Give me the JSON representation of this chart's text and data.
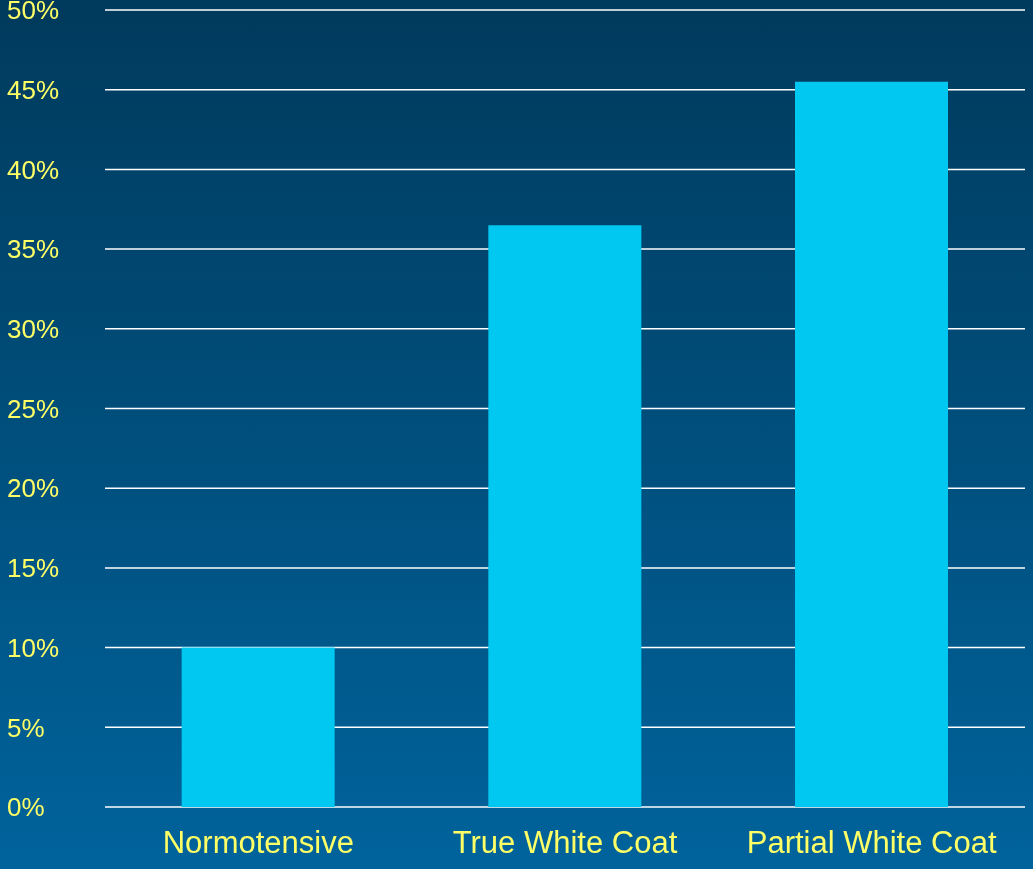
{
  "chart_data": {
    "type": "bar",
    "categories": [
      "Normotensive",
      "True White Coat",
      "Partial White Coat"
    ],
    "values": [
      10,
      36.5,
      45.5
    ],
    "color": "#00c8f0",
    "ylim": [
      0,
      50
    ],
    "yticks": [
      {
        "value": 0,
        "label": "0%"
      },
      {
        "value": 5,
        "label": "5%"
      },
      {
        "value": 10,
        "label": "10%"
      },
      {
        "value": 15,
        "label": "15%"
      },
      {
        "value": 20,
        "label": "20%"
      },
      {
        "value": 25,
        "label": "25%"
      },
      {
        "value": 30,
        "label": "30%"
      },
      {
        "value": 35,
        "label": "35%"
      },
      {
        "value": 40,
        "label": "40%"
      },
      {
        "value": 45,
        "label": "45%"
      },
      {
        "value": 50,
        "label": "50%"
      }
    ],
    "grid": "y"
  }
}
